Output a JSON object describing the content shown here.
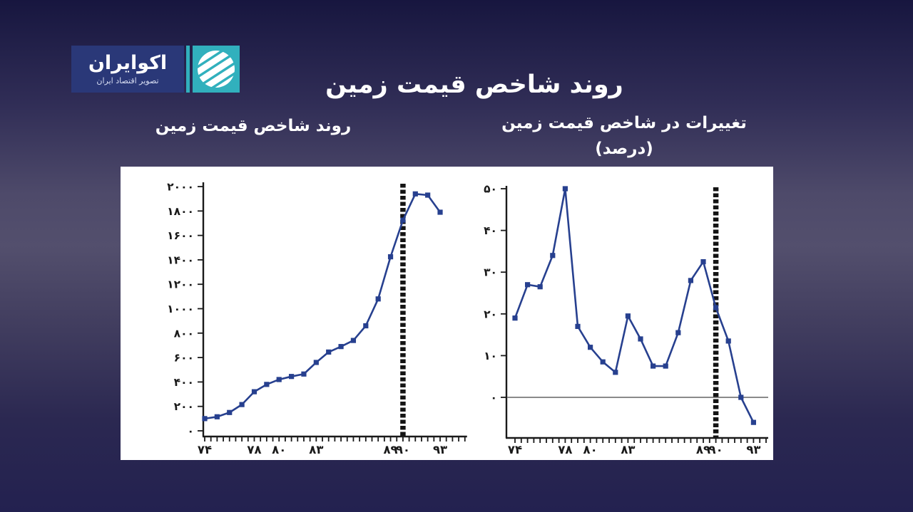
{
  "page": {
    "title": "روند شاخص قیمت زمین"
  },
  "logo": {
    "name": "اکوایران",
    "tagline": "تصویر اقتصاد ایران"
  },
  "colors": {
    "background_top": "#17163f",
    "background_mid": "#534f6d",
    "background_bottom": "#232150",
    "panel": "#ffffff",
    "title_text": "#ffffff",
    "axis": "#1a1a1a",
    "series_line": "#27408f",
    "highlight_bar": "#141414",
    "zero_line": "#8a8a8a",
    "logo_navy": "#2a3878",
    "logo_teal": "#31b0bd"
  },
  "chart_data": [
    {
      "type": "line",
      "title": "روند شاخص قیمت زمین",
      "title_lines": [
        "روند شاخص قیمت زمین"
      ],
      "x": [
        74,
        75,
        76,
        77,
        78,
        79,
        80,
        81,
        82,
        83,
        84,
        85,
        86,
        87,
        88,
        89,
        90,
        91,
        92,
        93
      ],
      "values": [
        100,
        115,
        150,
        215,
        320,
        380,
        420,
        445,
        465,
        560,
        645,
        690,
        740,
        860,
        1080,
        1425,
        1725,
        1940,
        1930,
        1790
      ],
      "x_tick_label_years": [
        74,
        78,
        80,
        83,
        89,
        90,
        93
      ],
      "yticks": [
        0,
        200,
        400,
        600,
        800,
        1000,
        1200,
        1400,
        1600,
        1800,
        2000
      ],
      "ylim": [
        0,
        2000
      ],
      "grid": false,
      "legend": "none",
      "marker": "square",
      "highlight_year": 90,
      "zero_line": false,
      "line_color": "#27408f",
      "highlight_color": "#141414"
    },
    {
      "type": "line",
      "title": "تغییرات در شاخص قیمت زمین (درصد)",
      "title_lines": [
        "تغییرات در شاخص قیمت زمین",
        "(درصد)"
      ],
      "x": [
        74,
        75,
        76,
        77,
        78,
        79,
        80,
        81,
        82,
        83,
        84,
        85,
        86,
        87,
        88,
        89,
        90,
        91,
        92,
        93
      ],
      "values": [
        19,
        27,
        26.5,
        34,
        50,
        17,
        12,
        8.5,
        6,
        19.5,
        14,
        7.5,
        7.5,
        15.5,
        28,
        32.5,
        21.5,
        13.5,
        0,
        -6
      ],
      "x_tick_label_years": [
        74,
        78,
        80,
        83,
        89,
        90,
        93
      ],
      "yticks": [
        0,
        10,
        20,
        30,
        40,
        50
      ],
      "ylim": [
        -10,
        50
      ],
      "grid": false,
      "legend": "none",
      "marker": "square",
      "highlight_year": 90,
      "zero_line": true,
      "line_color": "#27408f",
      "highlight_color": "#141414",
      "zero_line_color": "#8a8a8a"
    }
  ]
}
